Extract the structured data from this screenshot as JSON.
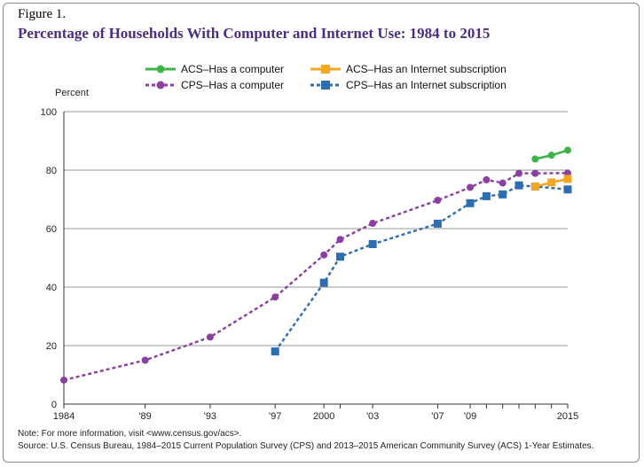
{
  "figure_label": "Figure 1.",
  "chart_data": {
    "type": "line",
    "title": "Percentage of Households With Computer and Internet Use: 1984 to 2015",
    "ylabel": "Percent",
    "xlabel": "",
    "ylim": [
      0,
      100
    ],
    "xlim": [
      1984,
      2015
    ],
    "yticks": [
      0,
      20,
      40,
      60,
      80,
      100
    ],
    "xticks": [
      {
        "value": 1984,
        "label": "1984"
      },
      {
        "value": 1989,
        "label": "'89"
      },
      {
        "value": 1993,
        "label": "'93"
      },
      {
        "value": 1997,
        "label": "'97"
      },
      {
        "value": 2000,
        "label": "2000"
      },
      {
        "value": 2001,
        "label": ""
      },
      {
        "value": 2003,
        "label": "'03"
      },
      {
        "value": 2007,
        "label": "'07"
      },
      {
        "value": 2009,
        "label": "'09"
      },
      {
        "value": 2010,
        "label": ""
      },
      {
        "value": 2011,
        "label": ""
      },
      {
        "value": 2012,
        "label": ""
      },
      {
        "value": 2013,
        "label": ""
      },
      {
        "value": 2014,
        "label": ""
      },
      {
        "value": 2015,
        "label": "2015"
      }
    ],
    "grid": "horizontal",
    "legend_position": "top",
    "series": [
      {
        "name": "ACS–Has a computer",
        "color": "#3cb44b",
        "marker": "circle",
        "style": "solid",
        "x": [
          2013,
          2014,
          2015
        ],
        "y": [
          83.8,
          85.1,
          86.8
        ]
      },
      {
        "name": "ACS–Has an Internet subscription",
        "color": "#f5a623",
        "marker": "square",
        "style": "solid",
        "x": [
          2013,
          2014,
          2015
        ],
        "y": [
          74.4,
          75.8,
          77.0
        ]
      },
      {
        "name": "CPS–Has a computer",
        "color": "#8b3fa0",
        "marker": "circle",
        "style": "dashed",
        "x": [
          1984,
          1989,
          1993,
          1997,
          2000,
          2001,
          2003,
          2007,
          2009,
          2010,
          2011,
          2012,
          2013,
          2015
        ],
        "y": [
          8.2,
          15.0,
          22.9,
          36.6,
          51.0,
          56.3,
          61.8,
          69.7,
          74.1,
          76.7,
          75.6,
          78.9,
          78.9,
          79.0
        ]
      },
      {
        "name": "CPS–Has an Internet subscription",
        "color": "#2e6db0",
        "marker": "square",
        "style": "dashed",
        "x": [
          1997,
          2000,
          2001,
          2003,
          2007,
          2009,
          2010,
          2011,
          2012,
          2013,
          2015
        ],
        "y": [
          18.0,
          41.5,
          50.4,
          54.7,
          61.7,
          68.7,
          71.1,
          71.7,
          74.8,
          74.4,
          73.4
        ]
      }
    ]
  },
  "footer": {
    "note": "Note: For more information, visit <www.census.gov/acs>.",
    "source": "Source: U.S. Census  Bureau, 1984–2015 Current Population Survey (CPS) and 2013–2015 American Community Survey (ACS) 1-Year Estimates."
  }
}
